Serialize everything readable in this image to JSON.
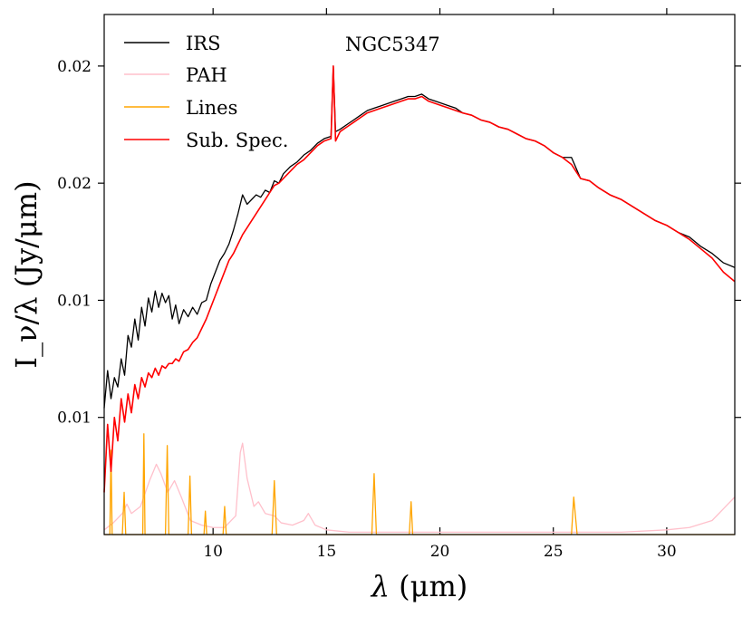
{
  "chart_data": {
    "type": "line",
    "title": "NGC5347",
    "xlabel_symbol": "λ",
    "xlabel_unit": " (μm)",
    "ylabel_text": "I_ν/λ (Jy/μm)",
    "xlim": [
      5.2,
      33.0
    ],
    "ylim": [
      0.0,
      0.0222
    ],
    "xticks": [
      10,
      15,
      20,
      25,
      30
    ],
    "xtick_labels": [
      "10",
      "15",
      "20",
      "25",
      "30"
    ],
    "yticks": [
      0.005,
      0.01,
      0.015,
      0.02
    ],
    "ytick_labels": [
      "0.01",
      "0.01",
      "0.02",
      "0.02"
    ],
    "legend": [
      "IRS",
      "PAH",
      "Lines",
      "Sub. Spec."
    ],
    "colors": {
      "IRS": "#000000",
      "PAH": "#ffc0cb",
      "Lines": "#ffa500",
      "Sub. Spec.": "#ff0000"
    },
    "series": [
      {
        "name": "IRS",
        "x": [
          5.2,
          5.35,
          5.5,
          5.65,
          5.8,
          5.95,
          6.1,
          6.25,
          6.4,
          6.55,
          6.7,
          6.85,
          7.0,
          7.15,
          7.3,
          7.45,
          7.6,
          7.75,
          7.9,
          8.05,
          8.2,
          8.35,
          8.5,
          8.7,
          8.9,
          9.1,
          9.3,
          9.5,
          9.7,
          9.9,
          10.1,
          10.3,
          10.5,
          10.7,
          10.9,
          11.1,
          11.3,
          11.5,
          11.7,
          11.9,
          12.1,
          12.3,
          12.5,
          12.7,
          12.9,
          13.1,
          13.4,
          13.7,
          14.0,
          14.3,
          14.6,
          14.9,
          15.2,
          15.3,
          15.4,
          15.6,
          15.9,
          16.2,
          16.5,
          16.8,
          17.1,
          17.4,
          17.7,
          18.0,
          18.3,
          18.6,
          18.9,
          19.2,
          19.5,
          19.8,
          20.1,
          20.4,
          20.7,
          21.0,
          21.4,
          21.8,
          22.2,
          22.6,
          23.0,
          23.4,
          23.8,
          24.2,
          24.6,
          25.0,
          25.4,
          25.8,
          26.2,
          26.6,
          27.0,
          27.5,
          28.0,
          28.5,
          29.0,
          29.5,
          30.0,
          30.5,
          31.0,
          31.5,
          32.0,
          32.5,
          33.0
        ],
        "values": [
          0.0054,
          0.007,
          0.0058,
          0.0067,
          0.0063,
          0.0075,
          0.0068,
          0.0085,
          0.008,
          0.0092,
          0.0083,
          0.0097,
          0.0089,
          0.0101,
          0.0095,
          0.0104,
          0.0097,
          0.0103,
          0.0099,
          0.0102,
          0.0092,
          0.0098,
          0.009,
          0.0096,
          0.0093,
          0.0097,
          0.0094,
          0.0099,
          0.01,
          0.0107,
          0.0112,
          0.0117,
          0.012,
          0.0124,
          0.013,
          0.0137,
          0.0145,
          0.0141,
          0.0143,
          0.0145,
          0.0144,
          0.0147,
          0.0146,
          0.0151,
          0.015,
          0.0154,
          0.0157,
          0.0159,
          0.0162,
          0.0164,
          0.0167,
          0.0169,
          0.017,
          0.02,
          0.0172,
          0.0173,
          0.0175,
          0.0177,
          0.0179,
          0.0181,
          0.0182,
          0.0183,
          0.0184,
          0.0185,
          0.0186,
          0.0187,
          0.0187,
          0.0188,
          0.0186,
          0.0185,
          0.0184,
          0.0183,
          0.0182,
          0.018,
          0.0179,
          0.0177,
          0.0176,
          0.0174,
          0.0173,
          0.0171,
          0.0169,
          0.0168,
          0.0166,
          0.0163,
          0.0161,
          0.0161,
          0.0152,
          0.0151,
          0.0148,
          0.0145,
          0.0143,
          0.014,
          0.0137,
          0.0134,
          0.0132,
          0.0129,
          0.0127,
          0.0123,
          0.012,
          0.0116,
          0.0114
        ]
      },
      {
        "name": "Sub. Spec.",
        "x": [
          5.2,
          5.35,
          5.5,
          5.65,
          5.8,
          5.95,
          6.1,
          6.25,
          6.4,
          6.55,
          6.7,
          6.85,
          7.0,
          7.15,
          7.3,
          7.45,
          7.6,
          7.75,
          7.9,
          8.05,
          8.2,
          8.35,
          8.5,
          8.7,
          8.9,
          9.1,
          9.3,
          9.5,
          9.7,
          9.9,
          10.1,
          10.3,
          10.5,
          10.7,
          10.9,
          11.1,
          11.3,
          11.5,
          11.7,
          11.9,
          12.1,
          12.3,
          12.5,
          12.7,
          12.9,
          13.1,
          13.4,
          13.7,
          14.0,
          14.3,
          14.6,
          14.9,
          15.2,
          15.3,
          15.4,
          15.6,
          15.9,
          16.2,
          16.5,
          16.8,
          17.1,
          17.4,
          17.7,
          18.0,
          18.3,
          18.6,
          18.9,
          19.2,
          19.5,
          19.8,
          20.1,
          20.4,
          20.7,
          21.0,
          21.4,
          21.8,
          22.2,
          22.6,
          23.0,
          23.4,
          23.8,
          24.2,
          24.6,
          25.0,
          25.4,
          25.8,
          26.2,
          26.6,
          27.0,
          27.5,
          28.0,
          28.5,
          29.0,
          29.5,
          30.0,
          30.5,
          31.0,
          31.5,
          32.0,
          32.5,
          33.0
        ],
        "values": [
          0.0018,
          0.0047,
          0.0027,
          0.005,
          0.004,
          0.0058,
          0.0048,
          0.006,
          0.0052,
          0.0064,
          0.0058,
          0.0067,
          0.0063,
          0.0069,
          0.0067,
          0.0071,
          0.0068,
          0.0072,
          0.0071,
          0.0073,
          0.0073,
          0.0075,
          0.0074,
          0.0078,
          0.0079,
          0.0082,
          0.0084,
          0.0088,
          0.0092,
          0.0097,
          0.0102,
          0.0107,
          0.0112,
          0.0117,
          0.012,
          0.0124,
          0.0128,
          0.0131,
          0.0134,
          0.0137,
          0.014,
          0.0143,
          0.0146,
          0.0149,
          0.015,
          0.0152,
          0.0155,
          0.0158,
          0.016,
          0.0163,
          0.0166,
          0.0168,
          0.0169,
          0.02,
          0.0168,
          0.0172,
          0.0174,
          0.0176,
          0.0178,
          0.018,
          0.0181,
          0.0182,
          0.0183,
          0.0184,
          0.0185,
          0.0186,
          0.0186,
          0.0187,
          0.0185,
          0.0184,
          0.0183,
          0.0182,
          0.0181,
          0.018,
          0.0179,
          0.0177,
          0.0176,
          0.0174,
          0.0173,
          0.0171,
          0.0169,
          0.0168,
          0.0166,
          0.0163,
          0.0161,
          0.0158,
          0.0152,
          0.0151,
          0.0148,
          0.0145,
          0.0143,
          0.014,
          0.0137,
          0.0134,
          0.0132,
          0.0129,
          0.0126,
          0.0122,
          0.0118,
          0.0112,
          0.0108
        ]
      },
      {
        "name": "PAH",
        "x": [
          5.2,
          5.6,
          6.0,
          6.2,
          6.4,
          6.8,
          7.2,
          7.5,
          7.7,
          8.0,
          8.3,
          8.6,
          9.0,
          9.5,
          10.0,
          10.5,
          11.0,
          11.2,
          11.3,
          11.5,
          11.8,
          12.0,
          12.3,
          12.7,
          13.0,
          13.5,
          14.0,
          14.2,
          14.5,
          15.0,
          16.0,
          18.0,
          20.0,
          22.0,
          24.0,
          26.0,
          28.0,
          30.0,
          31.0,
          32.0,
          32.5,
          33.0
        ],
        "values": [
          0.0002,
          0.0005,
          0.0009,
          0.0013,
          0.0009,
          0.0012,
          0.0023,
          0.003,
          0.0026,
          0.0018,
          0.0023,
          0.0016,
          0.0006,
          0.0004,
          0.0003,
          0.0003,
          0.0008,
          0.0035,
          0.0039,
          0.0024,
          0.0012,
          0.0014,
          0.0009,
          0.0008,
          0.0005,
          0.0004,
          0.0006,
          0.0009,
          0.0004,
          0.0002,
          0.0001,
          0.0001,
          0.0001,
          0.0001,
          0.0001,
          0.0001,
          0.0001,
          0.0002,
          0.0003,
          0.0006,
          0.0011,
          0.0016
        ]
      },
      {
        "name": "Lines",
        "x": [
          5.2,
          5.45,
          5.5,
          5.55,
          5.8,
          6.0,
          6.08,
          6.15,
          6.5,
          6.9,
          6.95,
          7.0,
          7.3,
          7.9,
          7.98,
          8.05,
          8.7,
          8.9,
          8.98,
          9.05,
          9.5,
          9.6,
          9.66,
          9.72,
          10.2,
          10.44,
          10.51,
          10.58,
          12.2,
          12.6,
          12.7,
          12.8,
          14.5,
          15.0,
          15.3,
          15.5,
          16.8,
          17.0,
          17.1,
          17.2,
          18.5,
          18.65,
          18.73,
          18.8,
          25.6,
          25.8,
          25.9,
          26.05,
          33.0
        ],
        "values": [
          0.0,
          0.0,
          0.0036,
          0.0,
          0.0,
          0.0,
          0.0018,
          0.0,
          0.0,
          0.0,
          0.0043,
          0.0,
          0.0,
          0.0,
          0.0038,
          0.0,
          0.0,
          0.0,
          0.0025,
          0.0,
          0.0,
          0.0,
          0.001,
          0.0,
          0.0,
          0.0,
          0.0012,
          0.0,
          0.0,
          0.0,
          0.0023,
          0.0,
          0.0,
          0.0,
          0.0,
          0.0,
          0.0,
          0.0,
          0.0026,
          0.0,
          0.0,
          0.0,
          0.0014,
          0.0,
          0.0,
          0.0,
          0.0016,
          0.0,
          0.0
        ]
      }
    ]
  }
}
